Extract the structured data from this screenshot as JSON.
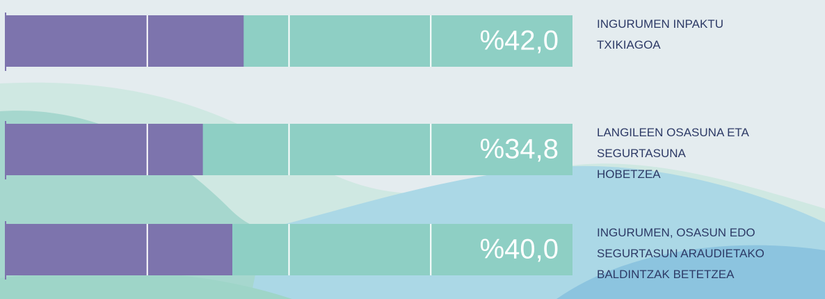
{
  "chart_data": {
    "type": "bar",
    "orientation": "horizontal",
    "categories": [
      "INGURUMEN INPAKTU\nTXIKIAGOA",
      "LANGILEEN OSASUNA ETA\nSEGURTASUNA\nHOBETZEA",
      "INGURUMEN, OSASUN EDO\nSEGURTASUN ARAUDIETAKO\nBALDINTZAK BETETZEA"
    ],
    "values": [
      42.0,
      34.8,
      40.0
    ],
    "value_labels": [
      "%42,0",
      "%34,8",
      "%40,0"
    ],
    "color": "#7d74ad",
    "track_color": "#8ecfc4",
    "xlim": [
      0,
      100
    ],
    "xticks": [
      25,
      50,
      75
    ],
    "grid": true
  }
}
